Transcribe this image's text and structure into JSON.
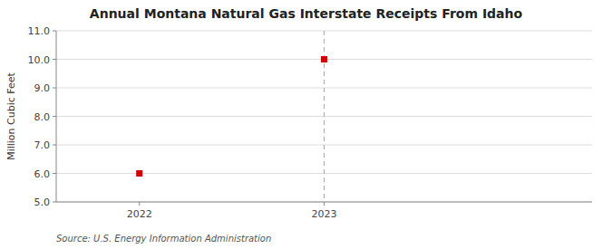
{
  "chart_data": {
    "type": "scatter",
    "title": "Annual Montana Natural Gas Interstate Receipts From Idaho",
    "y_label": "Million Cubic Feet",
    "source": "Source: U.S. Energy Information Administration",
    "x": [
      2022,
      2023
    ],
    "values": [
      6.0,
      10.0
    ],
    "color": "#cc0000",
    "marker": "square",
    "vline": 2023,
    "xlim": [
      2021.55,
      2024.45
    ],
    "ylim": [
      5.0,
      11.0
    ],
    "xticks": [
      2022,
      2023
    ],
    "yticks": [
      {
        "value": 5.0,
        "label": "5.0"
      },
      {
        "value": 6.0,
        "label": "6.0"
      },
      {
        "value": 7.0,
        "label": "7.0"
      },
      {
        "value": 8.0,
        "label": "8.0"
      },
      {
        "value": 9.0,
        "label": "9.0"
      },
      {
        "value": 10.0,
        "label": "10.0"
      },
      {
        "value": 11.0,
        "label": "11.0"
      }
    ],
    "grid": true
  }
}
